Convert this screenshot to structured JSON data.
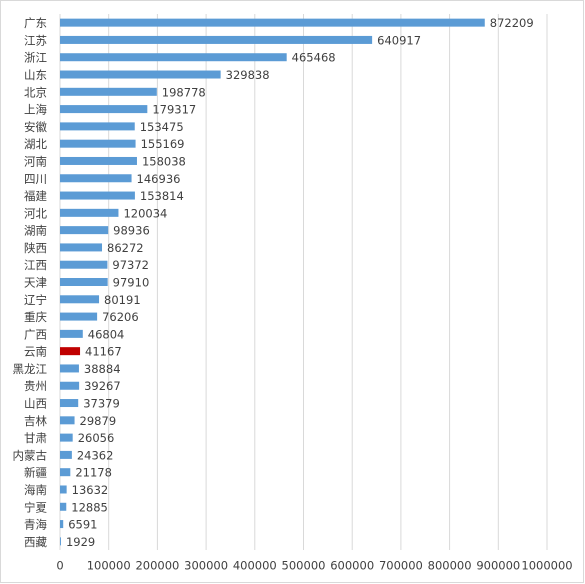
{
  "chart_data": {
    "type": "hbar",
    "categories": [
      "广东",
      "江苏",
      "浙江",
      "山东",
      "北京",
      "上海",
      "安徽",
      "湖北",
      "河南",
      "四川",
      "福建",
      "河北",
      "湖南",
      "陕西",
      "江西",
      "天津",
      "辽宁",
      "重庆",
      "广西",
      "云南",
      "黑龙江",
      "贵州",
      "山西",
      "吉林",
      "甘肃",
      "内蒙古",
      "新疆",
      "海南",
      "宁夏",
      "青海",
      "西藏"
    ],
    "values": [
      872209,
      640917,
      465468,
      329838,
      198778,
      179317,
      153475,
      155169,
      158038,
      146936,
      153814,
      120034,
      98936,
      86272,
      97372,
      97910,
      80191,
      76206,
      46804,
      41167,
      38884,
      39267,
      37379,
      29879,
      26056,
      24362,
      21178,
      13632,
      12885,
      6591,
      1929
    ],
    "colors": [
      "#5b9bd5",
      "#5b9bd5",
      "#5b9bd5",
      "#5b9bd5",
      "#5b9bd5",
      "#5b9bd5",
      "#5b9bd5",
      "#5b9bd5",
      "#5b9bd5",
      "#5b9bd5",
      "#5b9bd5",
      "#5b9bd5",
      "#5b9bd5",
      "#5b9bd5",
      "#5b9bd5",
      "#5b9bd5",
      "#5b9bd5",
      "#5b9bd5",
      "#5b9bd5",
      "#c00000",
      "#5b9bd5",
      "#5b9bd5",
      "#5b9bd5",
      "#5b9bd5",
      "#5b9bd5",
      "#5b9bd5",
      "#5b9bd5",
      "#5b9bd5",
      "#5b9bd5",
      "#5b9bd5",
      "#5b9bd5"
    ],
    "xlim": [
      0,
      1000000
    ],
    "xticks": [
      0,
      100000,
      200000,
      300000,
      400000,
      500000,
      600000,
      700000,
      800000,
      900000,
      1000000
    ],
    "grid": true
  }
}
